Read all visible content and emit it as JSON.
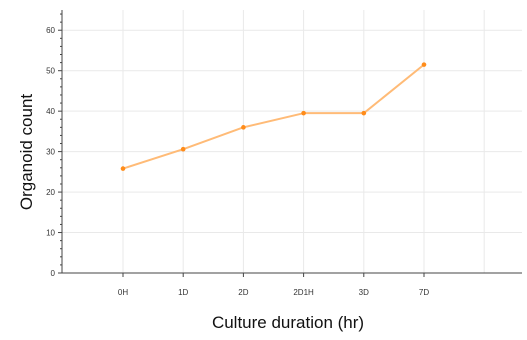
{
  "chart_data": {
    "type": "line",
    "title": "",
    "xlabel": "Culture duration (hr)",
    "ylabel": "Organoid count",
    "categories": [
      "0H",
      "1D",
      "2D",
      "2D1H",
      "3D",
      "7D"
    ],
    "series": [
      {
        "values": [
          25.8,
          30.6,
          36.0,
          39.5,
          39.5,
          51.5
        ]
      }
    ],
    "ylim": [
      0,
      65
    ],
    "yticks": [
      0,
      10,
      20,
      30,
      40,
      50,
      60
    ],
    "grid": true,
    "legend": "none",
    "colors": {
      "line": "#ffbb77",
      "marker": "#ff8c1a"
    }
  }
}
